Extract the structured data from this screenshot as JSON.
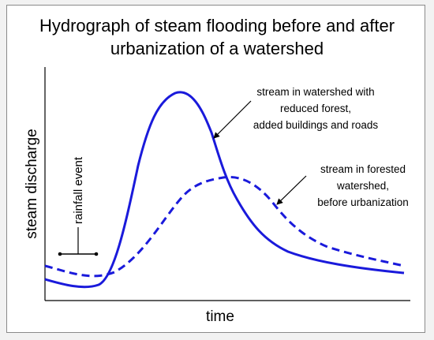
{
  "title_line1": "Hydrograph of steam flooding before and after",
  "title_line2": "urbanization of a watershed",
  "ylabel": "steam discharge",
  "xlabel": "time",
  "rainfall_label": "rainfall event",
  "urban_label": [
    "stream in watershed with",
    "reduced forest,",
    "added buildings and roads"
  ],
  "forest_label": [
    "stream in forested",
    "watershed,",
    "before urbanization"
  ],
  "colors": {
    "curve": "#1a1adb",
    "axis": "#000000",
    "frame_border": "#8a8a8a",
    "page_bg": "#f2f2f2"
  }
}
